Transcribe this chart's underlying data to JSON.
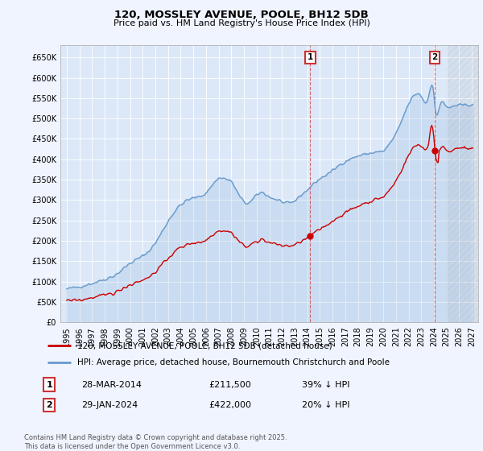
{
  "title": "120, MOSSLEY AVENUE, POOLE, BH12 5DB",
  "subtitle": "Price paid vs. HM Land Registry's House Price Index (HPI)",
  "fig_bg_color": "#f0f4ff",
  "plot_bg_color": "#dce8f8",
  "legend_label_red": "120, MOSSLEY AVENUE, POOLE, BH12 5DB (detached house)",
  "legend_label_blue": "HPI: Average price, detached house, Bournemouth Christchurch and Poole",
  "annotation1_date": "28-MAR-2014",
  "annotation1_price": "£211,500",
  "annotation1_hpi": "39% ↓ HPI",
  "annotation2_date": "29-JAN-2024",
  "annotation2_price": "£422,000",
  "annotation2_hpi": "20% ↓ HPI",
  "footer": "Contains HM Land Registry data © Crown copyright and database right 2025.\nThis data is licensed under the Open Government Licence v3.0.",
  "sale1_year": 2014.23,
  "sale1_value": 211500,
  "sale2_year": 2024.08,
  "sale2_value": 422000,
  "xlim": [
    1994.5,
    2027.5
  ],
  "ylim": [
    0,
    680000
  ],
  "yticks": [
    0,
    50000,
    100000,
    150000,
    200000,
    250000,
    300000,
    350000,
    400000,
    450000,
    500000,
    550000,
    600000,
    650000
  ],
  "xticks": [
    1995,
    1996,
    1997,
    1998,
    1999,
    2000,
    2001,
    2002,
    2003,
    2004,
    2005,
    2006,
    2007,
    2008,
    2009,
    2010,
    2011,
    2012,
    2013,
    2014,
    2015,
    2016,
    2017,
    2018,
    2019,
    2020,
    2021,
    2022,
    2023,
    2024,
    2025,
    2026,
    2027
  ],
  "red_color": "#cc0000",
  "blue_color": "#6699cc",
  "blue_fill_color": "#c8d8ee",
  "annotation_box_color": "#cc3333",
  "dashed_color": "#cc3333"
}
